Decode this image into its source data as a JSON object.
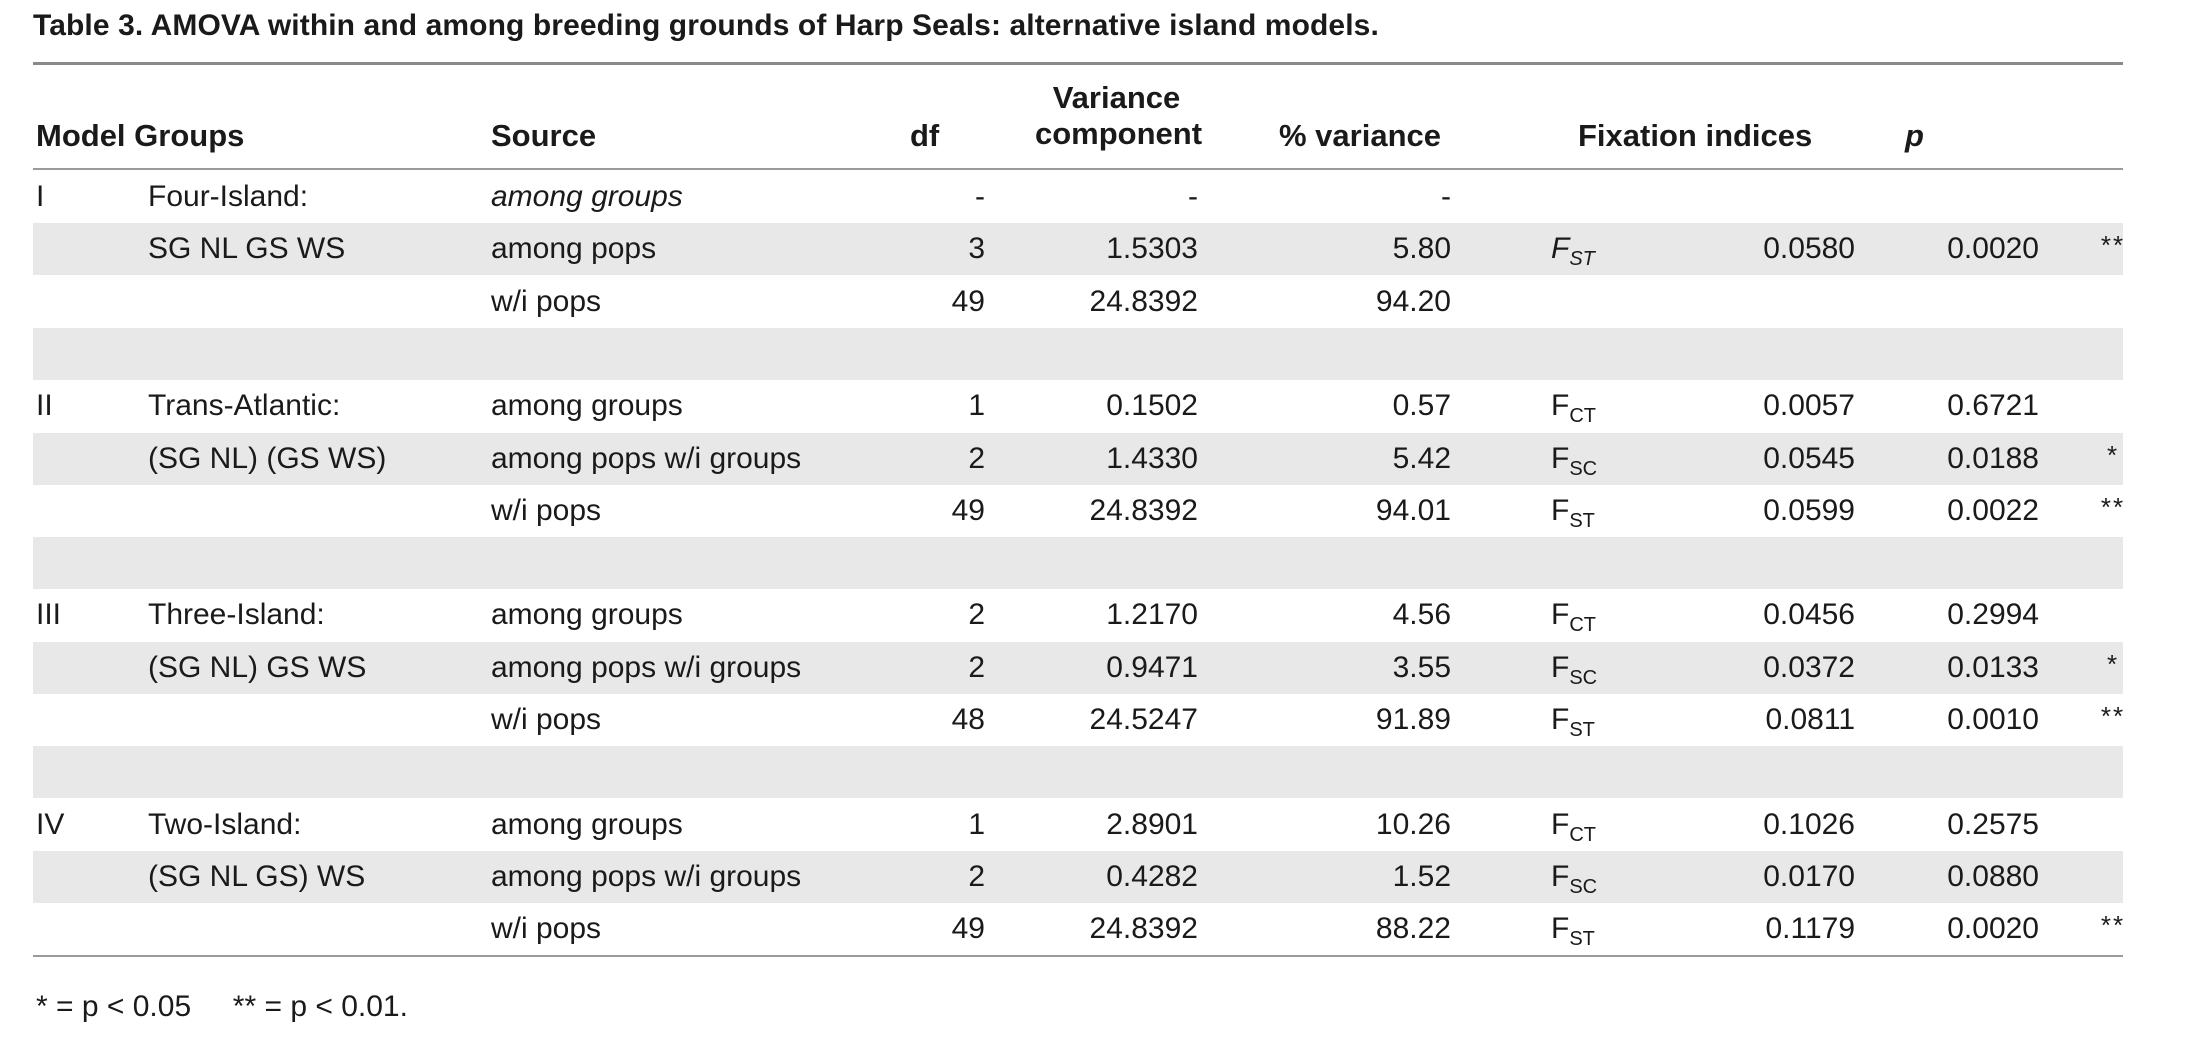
{
  "title": "Table 3.  AMOVA within and among breeding grounds of Harp Seals: alternative island models.",
  "headers": {
    "model_groups": "Model Groups",
    "source": "Source",
    "df": "df",
    "variance_line1": "Variance",
    "variance_line2": "component",
    "pct_variance": "% variance",
    "fixation": "Fixation indices",
    "p": "p"
  },
  "rows": [
    {
      "model": "I",
      "group": "Four-Island:",
      "source": "among groups",
      "source_italic": true,
      "df": "-",
      "var": "-",
      "pct": "-",
      "fix_base": "",
      "fix_sub": "",
      "fix_val": "",
      "p": "",
      "sig": "",
      "shade": false
    },
    {
      "model": "",
      "group": "SG NL GS WS",
      "source": "among pops",
      "df": "3",
      "var": "1.5303",
      "pct": "5.80",
      "fix_base": "F",
      "fix_sub": "ST",
      "fix_italic": true,
      "fix_val": "0.0580",
      "p": "0.0020",
      "sig": "**",
      "shade": true
    },
    {
      "model": "",
      "group": "",
      "source": "w/i pops",
      "df": "49",
      "var": "24.8392",
      "pct": "94.20",
      "fix_base": "",
      "fix_sub": "",
      "fix_val": "",
      "p": "",
      "sig": "",
      "shade": false
    },
    {
      "model": "",
      "group": "",
      "source": "",
      "df": "",
      "var": "",
      "pct": "",
      "fix_base": "",
      "fix_sub": "",
      "fix_val": "",
      "p": "",
      "sig": "",
      "shade": true
    },
    {
      "model": "II",
      "group": "Trans-Atlantic:",
      "source": "among groups",
      "df": "1",
      "var": "0.1502",
      "pct": "0.57",
      "fix_base": "F",
      "fix_sub": "CT",
      "fix_val": "0.0057",
      "p": "0.6721",
      "sig": "",
      "shade": false
    },
    {
      "model": "",
      "group": "(SG NL) (GS WS)",
      "source": "among pops w/i groups",
      "df": "2",
      "var": "1.4330",
      "pct": "5.42",
      "fix_base": "F",
      "fix_sub": "SC",
      "fix_val": "0.0545",
      "p": "0.0188",
      "sig": "*",
      "shade": true
    },
    {
      "model": "",
      "group": "",
      "source": "w/i pops",
      "df": "49",
      "var": "24.8392",
      "pct": "94.01",
      "fix_base": "F",
      "fix_sub": "ST",
      "fix_val": "0.0599",
      "p": "0.0022",
      "sig": "**",
      "shade": false
    },
    {
      "model": "",
      "group": "",
      "source": "",
      "df": "",
      "var": "",
      "pct": "",
      "fix_base": "",
      "fix_sub": "",
      "fix_val": "",
      "p": "",
      "sig": "",
      "shade": true
    },
    {
      "model": "III",
      "group": "Three-Island:",
      "source": "among groups",
      "df": "2",
      "var": "1.2170",
      "pct": "4.56",
      "fix_base": "F",
      "fix_sub": "CT",
      "fix_val": "0.0456",
      "p": "0.2994",
      "sig": "",
      "shade": false
    },
    {
      "model": "",
      "group": "(SG NL) GS WS",
      "source": "among pops w/i groups",
      "df": "2",
      "var": "0.9471",
      "pct": "3.55",
      "fix_base": "F",
      "fix_sub": "SC",
      "fix_val": "0.0372",
      "p": "0.0133",
      "sig": "*",
      "shade": true
    },
    {
      "model": "",
      "group": "",
      "source": "w/i pops",
      "df": "48",
      "var": "24.5247",
      "pct": "91.89",
      "fix_base": "F",
      "fix_sub": "ST",
      "fix_val": "0.0811",
      "p": "0.0010",
      "sig": "**",
      "shade": false
    },
    {
      "model": "",
      "group": "",
      "source": "",
      "df": "",
      "var": "",
      "pct": "",
      "fix_base": "",
      "fix_sub": "",
      "fix_val": "",
      "p": "",
      "sig": "",
      "shade": true
    },
    {
      "model": "IV",
      "group": "Two-Island:",
      "source": "among groups",
      "df": "1",
      "var": "2.8901",
      "pct": "10.26",
      "fix_base": "F",
      "fix_sub": "CT",
      "fix_val": "0.1026",
      "p": "0.2575",
      "sig": "",
      "shade": false
    },
    {
      "model": "",
      "group": "(SG NL GS) WS",
      "source": "among pops w/i groups",
      "df": "2",
      "var": "0.4282",
      "pct": "1.52",
      "fix_base": "F",
      "fix_sub": "SC",
      "fix_val": "0.0170",
      "p": "0.0880",
      "sig": "",
      "shade": true
    },
    {
      "model": "",
      "group": "",
      "source": "w/i pops",
      "df": "49",
      "var": "24.8392",
      "pct": "88.22",
      "fix_base": "F",
      "fix_sub": "ST",
      "fix_val": "0.1179",
      "p": "0.0020",
      "sig": "**",
      "shade": false
    }
  ],
  "footnote": "* = p < 0.05     ** = p < 0.01."
}
